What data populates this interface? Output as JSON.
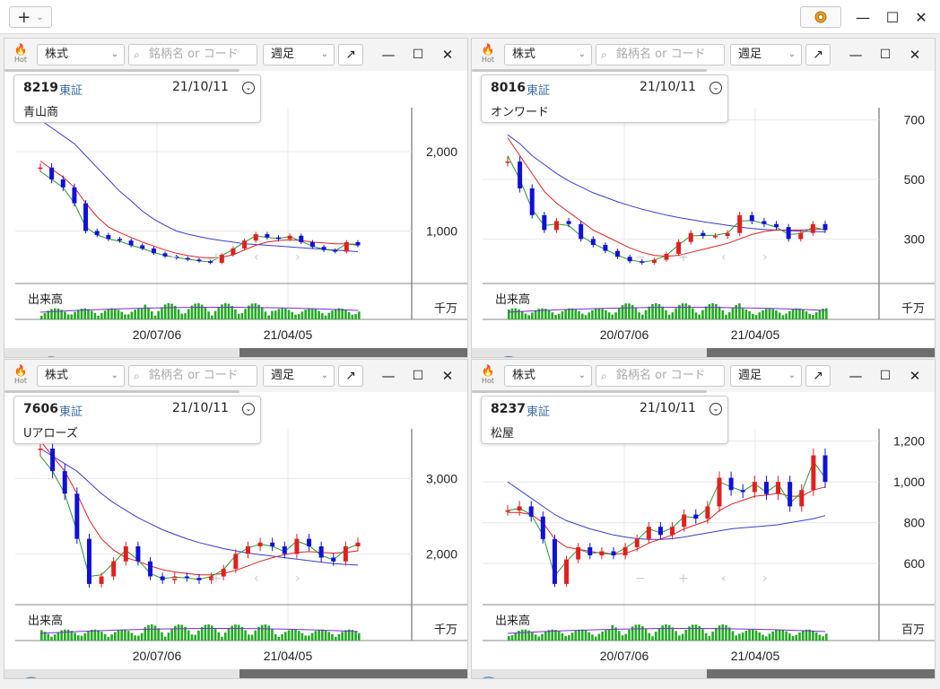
{
  "topbar": {
    "add_label": "+",
    "add_chevron": "⌄",
    "settings_icon": "gear-icon",
    "minimize_glyph": "—",
    "maximize_glyph": "☐",
    "close_glyph": "✕"
  },
  "common": {
    "market_select": "株式",
    "search_placeholder": "銘柄名 or コード",
    "interval_select": "週足",
    "hot_label": "Hot",
    "popout_glyph": "↗",
    "minimize_glyph": "—",
    "maximize_glyph": "☐",
    "close_glyph": "✕",
    "volume_label": "出来高",
    "x_ticks": [
      "20/07/06",
      "21/04/05"
    ]
  },
  "panels": [
    {
      "code": "8219",
      "exchange": "東証",
      "date": "21/10/11",
      "name": "青山商",
      "y_ticks": [
        "2,000",
        "1,000"
      ],
      "volume_unit": "千万",
      "chart_data": {
        "type": "candlestick",
        "x_range": [
          "2019/10",
          "2021/10"
        ],
        "y_ticks": [
          2000,
          1000
        ],
        "close": [
          1800,
          1650,
          1550,
          1350,
          1000,
          950,
          900,
          880,
          820,
          780,
          720,
          680,
          660,
          640,
          620,
          600,
          700,
          780,
          880,
          960,
          920,
          900,
          940,
          860,
          800,
          760,
          740,
          860,
          820
        ],
        "ma_short": [
          1750,
          1650,
          1550,
          1350,
          1050,
          950,
          900,
          870,
          820,
          780,
          730,
          690,
          665,
          645,
          625,
          610,
          690,
          770,
          860,
          940,
          920,
          905,
          930,
          870,
          810,
          770,
          750,
          840,
          820
        ],
        "ma_mid": [
          1880,
          1780,
          1680,
          1550,
          1350,
          1180,
          1050,
          980,
          920,
          860,
          810,
          760,
          720,
          690,
          670,
          660,
          670,
          700,
          760,
          820,
          860,
          880,
          890,
          880,
          860,
          850,
          840,
          840,
          830
        ],
        "ma_long": [
          2400,
          2300,
          2200,
          2100,
          1950,
          1800,
          1650,
          1500,
          1380,
          1250,
          1150,
          1070,
          1000,
          960,
          930,
          900,
          880,
          860,
          840,
          830,
          820,
          810,
          800,
          790,
          780,
          770,
          760,
          750,
          740
        ]
      }
    },
    {
      "code": "8016",
      "exchange": "東証",
      "date": "21/10/11",
      "name": "オンワード",
      "y_ticks": [
        "700",
        "500",
        "300"
      ],
      "volume_unit": "千万",
      "chart_data": {
        "type": "candlestick",
        "x_range": [
          "2019/10",
          "2021/10"
        ],
        "y_ticks": [
          700,
          500,
          300
        ],
        "close": [
          560,
          470,
          380,
          330,
          360,
          350,
          300,
          280,
          260,
          240,
          225,
          220,
          230,
          250,
          290,
          320,
          310,
          310,
          320,
          380,
          360,
          350,
          340,
          300,
          320,
          350,
          330
        ],
        "ma_short": [
          580,
          500,
          400,
          345,
          350,
          345,
          310,
          285,
          265,
          245,
          230,
          222,
          228,
          245,
          280,
          310,
          312,
          312,
          320,
          360,
          362,
          352,
          340,
          315,
          318,
          340,
          330
        ],
        "ma_mid": [
          640,
          580,
          520,
          460,
          420,
          390,
          360,
          330,
          310,
          290,
          270,
          255,
          245,
          242,
          245,
          255,
          265,
          275,
          285,
          300,
          315,
          325,
          330,
          330,
          330,
          332,
          333
        ],
        "ma_long": [
          650,
          620,
          580,
          550,
          520,
          495,
          475,
          455,
          440,
          425,
          412,
          400,
          390,
          380,
          372,
          365,
          358,
          352,
          346,
          340,
          335,
          332,
          330,
          328,
          326,
          325,
          324
        ]
      }
    },
    {
      "code": "7606",
      "exchange": "東証",
      "date": "21/10/11",
      "name": "Uアローズ",
      "y_ticks": [
        "3,000",
        "2,000"
      ],
      "volume_unit": "千万",
      "chart_data": {
        "type": "candlestick",
        "x_range": [
          "2019/10",
          "2021/10"
        ],
        "y_ticks": [
          3000,
          2000
        ],
        "close": [
          3400,
          3100,
          2800,
          2200,
          1600,
          1700,
          1900,
          2100,
          1900,
          1700,
          1650,
          1700,
          1680,
          1650,
          1700,
          1800,
          2000,
          2100,
          2150,
          2100,
          2000,
          2200,
          2100,
          1950,
          1900,
          2100,
          2150
        ],
        "ma_short": [
          3300,
          3100,
          2800,
          2300,
          1700,
          1720,
          1880,
          2050,
          1920,
          1740,
          1670,
          1690,
          1680,
          1660,
          1700,
          1790,
          1980,
          2080,
          2130,
          2100,
          2030,
          2170,
          2110,
          1980,
          1920,
          2060,
          2130
        ],
        "ma_mid": [
          3500,
          3300,
          3100,
          2800,
          2450,
          2200,
          2050,
          1950,
          1900,
          1840,
          1790,
          1760,
          1740,
          1720,
          1720,
          1740,
          1780,
          1840,
          1900,
          1950,
          1990,
          2020,
          2030,
          2020,
          2010,
          2020,
          2040
        ],
        "ma_long": [
          3400,
          3300,
          3200,
          3100,
          2950,
          2800,
          2680,
          2580,
          2480,
          2400,
          2320,
          2260,
          2200,
          2150,
          2110,
          2070,
          2040,
          2010,
          1990,
          1970,
          1950,
          1930,
          1910,
          1890,
          1870,
          1860,
          1850
        ]
      }
    },
    {
      "code": "8237",
      "exchange": "東証",
      "date": "21/10/11",
      "name": "松屋",
      "y_ticks": [
        "1,200",
        "1,000",
        "800",
        "600"
      ],
      "volume_unit": "百万",
      "chart_data": {
        "type": "candlestick",
        "x_range": [
          "2019/10",
          "2021/10"
        ],
        "y_ticks": [
          1200,
          1000,
          800,
          600
        ],
        "close": [
          860,
          880,
          830,
          720,
          500,
          620,
          680,
          640,
          660,
          640,
          680,
          720,
          780,
          740,
          780,
          840,
          820,
          880,
          1020,
          960,
          950,
          1000,
          940,
          1000,
          880,
          960,
          1130,
          1000
        ],
        "ma_short": [
          860,
          870,
          840,
          740,
          540,
          610,
          670,
          650,
          655,
          645,
          675,
          715,
          770,
          750,
          775,
          830,
          825,
          870,
          1000,
          975,
          955,
          990,
          950,
          990,
          895,
          950,
          1100,
          1020
        ],
        "ma_mid": [
          850,
          850,
          840,
          800,
          720,
          680,
          670,
          660,
          650,
          645,
          650,
          670,
          700,
          720,
          740,
          770,
          790,
          810,
          860,
          890,
          910,
          930,
          935,
          945,
          930,
          930,
          960,
          975
        ],
        "ma_long": [
          1000,
          960,
          920,
          880,
          840,
          810,
          790,
          770,
          755,
          740,
          730,
          722,
          718,
          718,
          722,
          730,
          740,
          750,
          760,
          770,
          775,
          780,
          785,
          790,
          800,
          810,
          820,
          835
        ]
      }
    }
  ]
}
